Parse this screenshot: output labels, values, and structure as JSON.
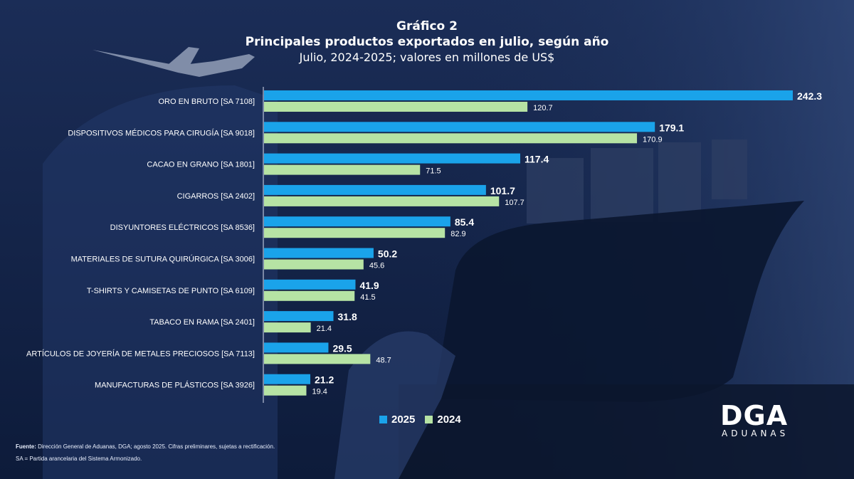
{
  "title": "Gráfico 2",
  "heading": "Principales productos exportados en julio, según año",
  "subtitle": "Julio, 2024-2025; valores en millones de US$",
  "colors": {
    "series_2025": "#1aa3ea",
    "series_2024": "#b6e3a4",
    "background": "#14244a"
  },
  "chart_data": {
    "type": "bar",
    "orientation": "horizontal",
    "categories": [
      "ORO EN BRUTO [SA 7108]",
      "DISPOSITIVOS MÉDICOS PARA CIRUGÍA [SA 9018]",
      "CACAO EN GRANO [SA 1801]",
      "CIGARROS [SA 2402]",
      "DISYUNTORES ELÉCTRICOS [SA 8536]",
      "MATERIALES DE SUTURA QUIRÚRGICA [SA 3006]",
      "T-SHIRTS Y CAMISETAS DE PUNTO [SA 6109]",
      "TABACO EN RAMA [SA 2401]",
      "ARTÍCULOS DE JOYERÍA DE METALES PRECIOSOS [SA 7113]",
      "MANUFACTURAS DE PLÁSTICOS [SA 3926]"
    ],
    "series": [
      {
        "name": "2025",
        "values": [
          242.3,
          179.1,
          117.4,
          101.7,
          85.4,
          50.2,
          41.9,
          31.8,
          29.5,
          21.2
        ]
      },
      {
        "name": "2024",
        "values": [
          120.7,
          170.9,
          71.5,
          107.7,
          82.9,
          45.6,
          41.5,
          21.4,
          48.7,
          19.4
        ]
      }
    ],
    "xlim": [
      0,
      242.3
    ],
    "legend": "bottom-center",
    "grid": false
  },
  "legend": {
    "label_2025": "2025",
    "label_2024": "2024"
  },
  "footnote": {
    "source_label": "Fuente:",
    "source_text": "Dirección General de Aduanas, DGA; agosto 2025. Cifras preliminares, sujetas a rectificación.",
    "note": "SA = Partida arancelaria del Sistema Armonizado."
  },
  "logo": {
    "top": "DGA",
    "bottom": "ADUANAS"
  }
}
